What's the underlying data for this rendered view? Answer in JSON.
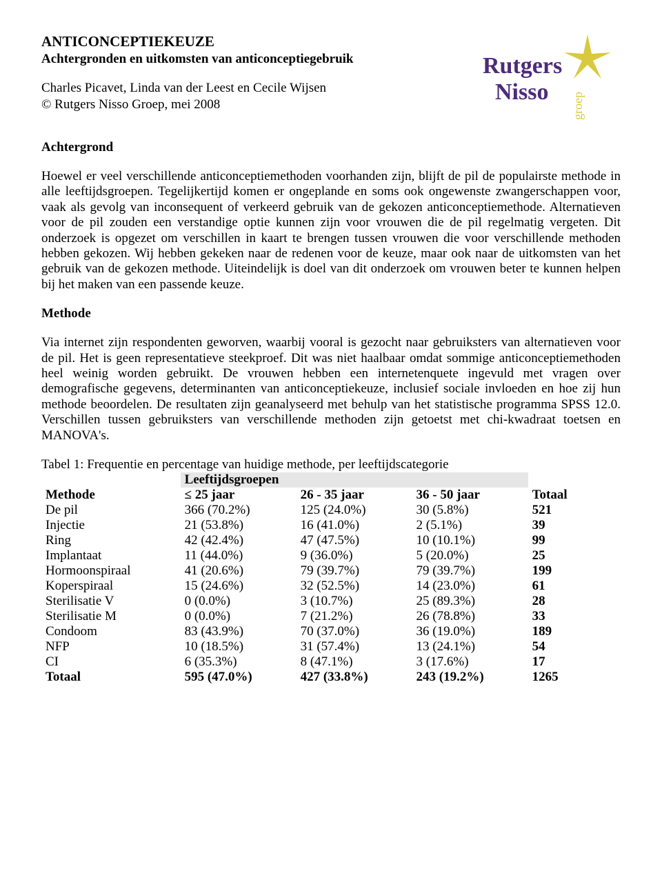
{
  "header": {
    "title": "ANTICONCEPTIEKEUZE",
    "subtitle": "Achtergronden en uitkomsten van anticonceptiegebruik",
    "authors": "Charles Picavet, Linda van der Leest en Cecile Wijsen",
    "copyright": "© Rutgers Nisso Groep, mei 2008"
  },
  "logo": {
    "word1": "Rutgers",
    "word2": "Nisso",
    "word3": "groep",
    "colors": {
      "purple": "#4d2b7a",
      "yellow": "#d8c93f"
    }
  },
  "sections": {
    "achtergrond": {
      "heading": "Achtergrond",
      "body": "Hoewel er veel verschillende anticonceptiemethoden voorhanden zijn, blijft de pil de populairste methode in alle leeftijdsgroepen. Tegelijkertijd komen er ongeplande en soms ook ongewenste zwangerschappen voor, vaak als gevolg van inconsequent of verkeerd gebruik van de gekozen anticonceptiemethode. Alternatieven voor de pil zouden een verstandige optie kunnen zijn voor vrouwen die de pil regelmatig vergeten. Dit onderzoek is opgezet om verschillen in kaart te brengen tussen vrouwen die voor verschillende methoden hebben gekozen. Wij hebben gekeken naar de redenen voor de keuze, maar ook naar de uitkomsten van het gebruik van de gekozen methode. Uiteindelijk is doel van dit onderzoek om vrouwen beter te kunnen helpen bij het maken van een passende keuze."
    },
    "methode": {
      "heading": "Methode",
      "body": "Via internet zijn respondenten geworven, waarbij vooral is gezocht naar gebruiksters van alternatieven voor de pil. Het is geen representatieve steekproef. Dit was niet haalbaar omdat sommige anticonceptiemethoden heel weinig worden gebruikt. De vrouwen hebben een internetenquete ingevuld met vragen over demografische gegevens, determinanten van anticonceptiekeuze, inclusief sociale invloeden en hoe zij hun methode beoordelen. De resultaten zijn geanalyseerd met behulp van het statistische programma SPSS 12.0. Verschillen tussen gebruiksters van verschillende methoden zijn getoetst met chi-kwadraat toetsen en MANOVA's."
    }
  },
  "table": {
    "caption": "Tabel 1: Frequentie en percentage van huidige methode, per leeftijdscategorie",
    "super_header": "Leeftijdsgroepen",
    "columns": [
      "Methode",
      "≤ 25 jaar",
      "26 - 35 jaar",
      "36 - 50 jaar",
      "Totaal"
    ],
    "super_header_bg": "#e6e6e6",
    "rows": [
      {
        "method": "De pil",
        "g1": "366 (70.2%)",
        "g2": "125 (24.0%)",
        "g3": "30 (5.8%)",
        "total": "521"
      },
      {
        "method": "Injectie",
        "g1": "21 (53.8%)",
        "g2": "16 (41.0%)",
        "g3": "2 (5.1%)",
        "total": "39"
      },
      {
        "method": "Ring",
        "g1": "42 (42.4%)",
        "g2": "47 (47.5%)",
        "g3": "10 (10.1%)",
        "total": "99"
      },
      {
        "method": "Implantaat",
        "g1": "11 (44.0%)",
        "g2": "9 (36.0%)",
        "g3": "5 (20.0%)",
        "total": "25"
      },
      {
        "method": "Hormoonspiraal",
        "g1": "41 (20.6%)",
        "g2": "79 (39.7%)",
        "g3": "79 (39.7%)",
        "total": "199"
      },
      {
        "method": "Koperspiraal",
        "g1": "15 (24.6%)",
        "g2": "32 (52.5%)",
        "g3": "14 (23.0%)",
        "total": "61"
      },
      {
        "method": "Sterilisatie V",
        "g1": "0 (0.0%)",
        "g2": "3 (10.7%)",
        "g3": "25 (89.3%)",
        "total": "28"
      },
      {
        "method": "Sterilisatie M",
        "g1": "0 (0.0%)",
        "g2": "7 (21.2%)",
        "g3": "26 (78.8%)",
        "total": "33"
      },
      {
        "method": "Condoom",
        "g1": "83 (43.9%)",
        "g2": "70 (37.0%)",
        "g3": "36 (19.0%)",
        "total": "189"
      },
      {
        "method": "NFP",
        "g1": "10 (18.5%)",
        "g2": "31 (57.4%)",
        "g3": "13 (24.1%)",
        "total": "54"
      },
      {
        "method": "CI",
        "g1": "6 (35.3%)",
        "g2": "8 (47.1%)",
        "g3": "3 (17.6%)",
        "total": "17"
      }
    ],
    "total_row": {
      "method": "Totaal",
      "g1": "595 (47.0%)",
      "g2": "427 (33.8%)",
      "g3": "243 (19.2%)",
      "total": "1265"
    }
  }
}
